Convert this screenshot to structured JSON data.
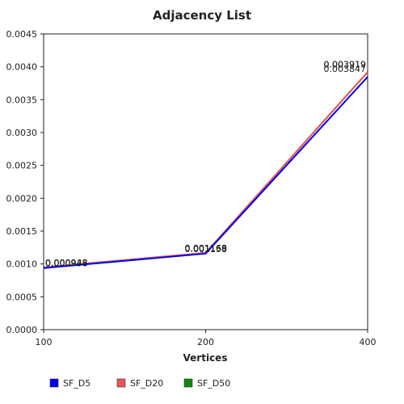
{
  "chart_data": {
    "type": "line",
    "title": "Adjacency List",
    "xlabel": "Vertices",
    "ylabel": "",
    "categories": [
      "100",
      "200",
      "400"
    ],
    "ylim": [
      0,
      0.0045
    ],
    "yticks": [
      "0.0000",
      "0.0005",
      "0.0010",
      "0.0015",
      "0.0020",
      "0.0025",
      "0.0030",
      "0.0035",
      "0.0040",
      "0.0045"
    ],
    "grid": false,
    "legend_position": "bottom",
    "series": [
      {
        "name": "SF_D5",
        "color": "#0000ee",
        "values": [
          0.000938,
          0.001158,
          0.003847
        ],
        "labels": [
          "0.000938",
          "0.001158",
          "0.003847"
        ]
      },
      {
        "name": "SF_D20",
        "color": "#ee5555",
        "values": [
          0.000948,
          0.001169,
          0.003919
        ],
        "labels": [
          "0.000948",
          "0.001169",
          "0.003919"
        ]
      },
      {
        "name": "SF_D50",
        "color": "#118811",
        "values": [
          0.000948,
          0.001168,
          0.003919
        ],
        "labels": [
          "0.000948",
          "0.001168",
          "0.003919"
        ]
      }
    ]
  }
}
